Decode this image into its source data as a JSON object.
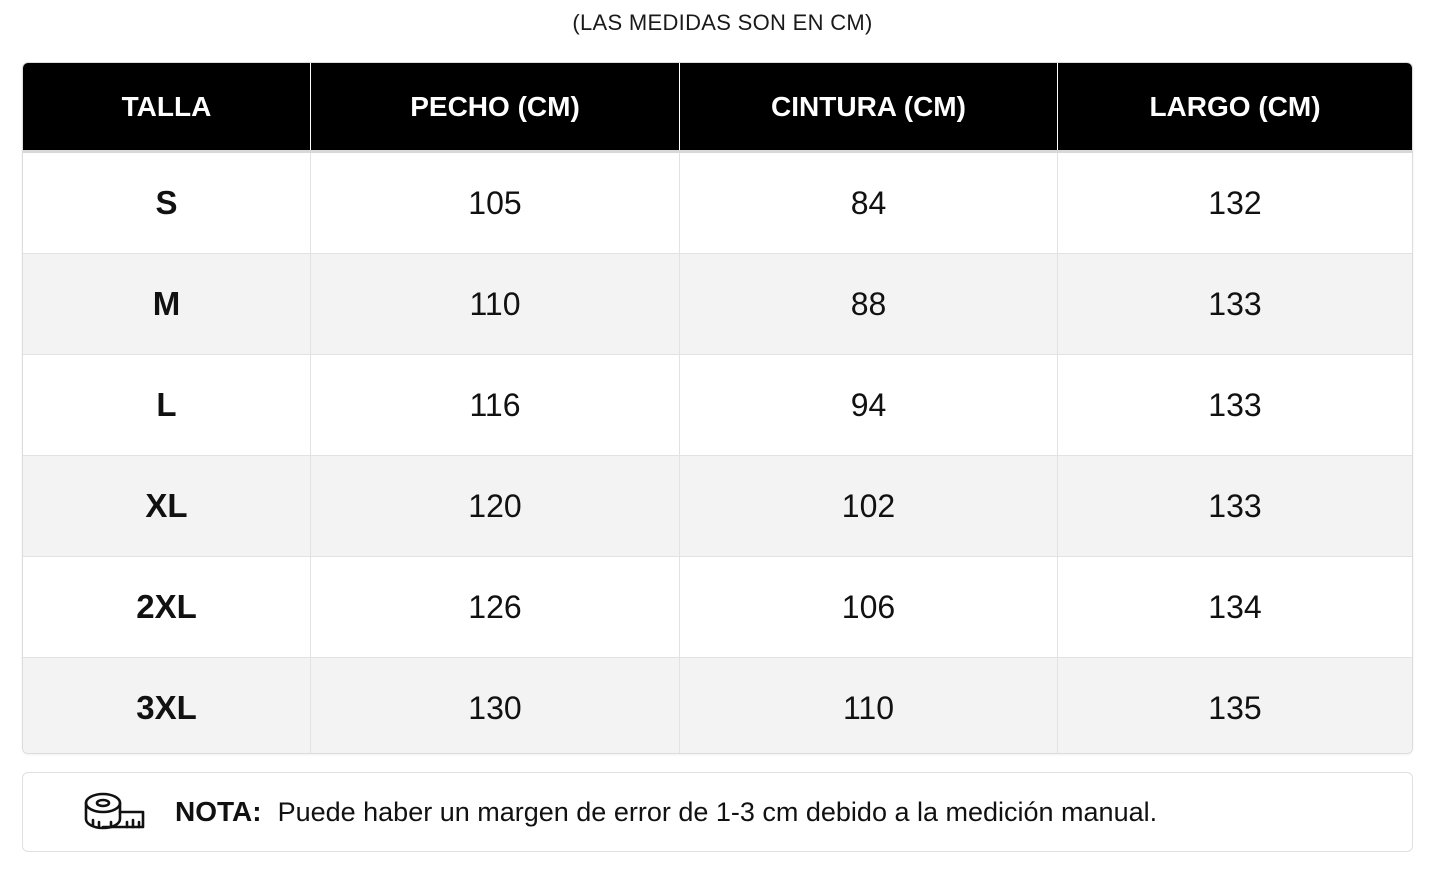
{
  "subtitle": "(LAS MEDIDAS SON EN CM)",
  "table": {
    "headers": [
      "TALLA",
      "PECHO (CM)",
      "CINTURA (CM)",
      "LARGO (CM)"
    ],
    "rows": [
      [
        "S",
        "105",
        "84",
        "132"
      ],
      [
        "M",
        "110",
        "88",
        "133"
      ],
      [
        "L",
        "116",
        "94",
        "133"
      ],
      [
        "XL",
        "120",
        "102",
        "133"
      ],
      [
        "2XL",
        "126",
        "106",
        "134"
      ],
      [
        "3XL",
        "130",
        "110",
        "135"
      ]
    ]
  },
  "note": {
    "icon": "measuring-tape-icon",
    "label": "NOTA:",
    "text": "Puede haber un margen de error de 1-3 cm debido a la medición manual."
  },
  "colors": {
    "header_bg": "#000000",
    "header_text": "#ffffff",
    "row_alt_bg": "#f3f3f3"
  }
}
